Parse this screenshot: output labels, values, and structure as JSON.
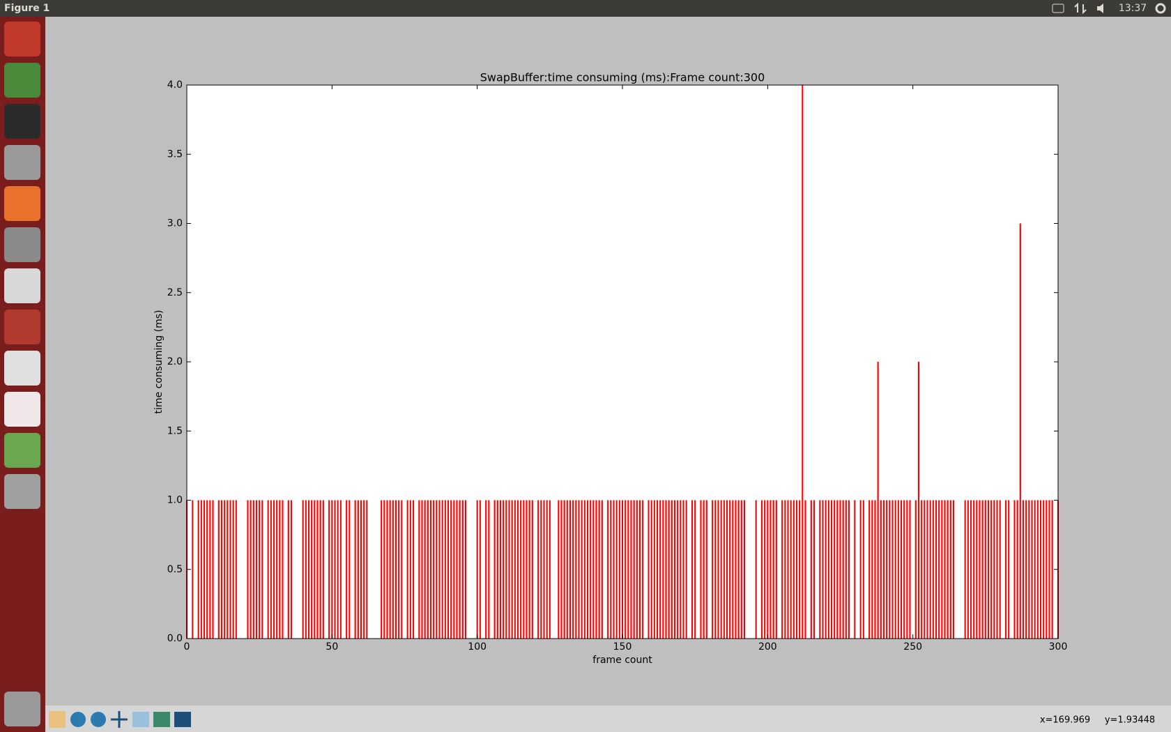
{
  "window": {
    "title": "Figure 1",
    "clock": "13:37",
    "status_x": "x=169.969",
    "status_y": "y=1.93448"
  },
  "chart_data": {
    "type": "bar",
    "title": "SwapBuffer:time consuming (ms):Frame count:300",
    "xlabel": "frame count",
    "ylabel": "time consuming (ms)",
    "color": "#ff0000",
    "xlim": [
      0,
      300
    ],
    "ylim": [
      0,
      4
    ],
    "xticks": [
      0,
      50,
      100,
      150,
      200,
      250,
      300
    ],
    "yticks": [
      {
        "value": 0,
        "label": "0.0"
      },
      {
        "value": 0.5,
        "label": "0.5"
      },
      {
        "value": 1,
        "label": "1.0"
      },
      {
        "value": 1.5,
        "label": "1.5"
      },
      {
        "value": 2,
        "label": "2.0"
      },
      {
        "value": 2.5,
        "label": "2.5"
      },
      {
        "value": 3,
        "label": "3.0"
      },
      {
        "value": 3.5,
        "label": "3.5"
      },
      {
        "value": 4,
        "label": "4.0"
      }
    ],
    "x": [
      0,
      1,
      2,
      3,
      4,
      5,
      6,
      7,
      8,
      9,
      10,
      11,
      12,
      13,
      14,
      15,
      16,
      17,
      18,
      19,
      20,
      21,
      22,
      23,
      24,
      25,
      26,
      27,
      28,
      29,
      30,
      31,
      32,
      33,
      34,
      35,
      36,
      37,
      38,
      39,
      40,
      41,
      42,
      43,
      44,
      45,
      46,
      47,
      48,
      49,
      50,
      51,
      52,
      53,
      54,
      55,
      56,
      57,
      58,
      59,
      60,
      61,
      62,
      63,
      64,
      65,
      66,
      67,
      68,
      69,
      70,
      71,
      72,
      73,
      74,
      75,
      76,
      77,
      78,
      79,
      80,
      81,
      82,
      83,
      84,
      85,
      86,
      87,
      88,
      89,
      90,
      91,
      92,
      93,
      94,
      95,
      96,
      97,
      98,
      99,
      100,
      101,
      102,
      103,
      104,
      105,
      106,
      107,
      108,
      109,
      110,
      111,
      112,
      113,
      114,
      115,
      116,
      117,
      118,
      119,
      120,
      121,
      122,
      123,
      124,
      125,
      126,
      127,
      128,
      129,
      130,
      131,
      132,
      133,
      134,
      135,
      136,
      137,
      138,
      139,
      140,
      141,
      142,
      143,
      144,
      145,
      146,
      147,
      148,
      149,
      150,
      151,
      152,
      153,
      154,
      155,
      156,
      157,
      158,
      159,
      160,
      161,
      162,
      163,
      164,
      165,
      166,
      167,
      168,
      169,
      170,
      171,
      172,
      173,
      174,
      175,
      176,
      177,
      178,
      179,
      180,
      181,
      182,
      183,
      184,
      185,
      186,
      187,
      188,
      189,
      190,
      191,
      192,
      193,
      194,
      195,
      196,
      197,
      198,
      199,
      200,
      201,
      202,
      203,
      204,
      205,
      206,
      207,
      208,
      209,
      210,
      211,
      212,
      213,
      214,
      215,
      216,
      217,
      218,
      219,
      220,
      221,
      222,
      223,
      224,
      225,
      226,
      227,
      228,
      229,
      230,
      231,
      232,
      233,
      234,
      235,
      236,
      237,
      238,
      239,
      240,
      241,
      242,
      243,
      244,
      245,
      246,
      247,
      248,
      249,
      250,
      251,
      252,
      253,
      254,
      255,
      256,
      257,
      258,
      259,
      260,
      261,
      262,
      263,
      264,
      265,
      266,
      267,
      268,
      269,
      270,
      271,
      272,
      273,
      274,
      275,
      276,
      277,
      278,
      279,
      280,
      281,
      282,
      283,
      284,
      285,
      286,
      287,
      288,
      289,
      290,
      291,
      292,
      293,
      294,
      295,
      296,
      297,
      298,
      299,
      300
    ],
    "values": [
      1,
      0,
      1,
      0,
      1,
      1,
      1,
      1,
      1,
      1,
      0,
      1,
      1,
      1,
      1,
      1,
      1,
      1,
      0,
      0,
      0,
      1,
      1,
      1,
      1,
      1,
      1,
      0,
      1,
      1,
      1,
      1,
      1,
      1,
      0,
      1,
      1,
      0,
      0,
      0,
      1,
      1,
      1,
      1,
      1,
      1,
      1,
      1,
      0,
      1,
      1,
      1,
      1,
      1,
      0,
      1,
      1,
      0,
      1,
      1,
      1,
      1,
      1,
      0,
      0,
      0,
      0,
      1,
      1,
      1,
      1,
      1,
      1,
      1,
      1,
      0,
      1,
      1,
      1,
      0,
      1,
      1,
      1,
      1,
      1,
      1,
      1,
      1,
      1,
      1,
      1,
      1,
      1,
      1,
      1,
      1,
      1,
      0,
      0,
      0,
      1,
      1,
      0,
      1,
      1,
      0,
      1,
      1,
      1,
      1,
      1,
      1,
      1,
      1,
      1,
      1,
      1,
      1,
      1,
      1,
      0,
      1,
      1,
      1,
      1,
      1,
      0,
      0,
      1,
      1,
      1,
      1,
      1,
      1,
      1,
      1,
      1,
      1,
      1,
      1,
      1,
      1,
      1,
      1,
      0,
      1,
      1,
      1,
      1,
      1,
      1,
      1,
      1,
      1,
      1,
      1,
      1,
      1,
      0,
      1,
      1,
      1,
      1,
      1,
      1,
      1,
      1,
      1,
      1,
      1,
      1,
      1,
      1,
      0,
      1,
      1,
      0,
      1,
      1,
      1,
      0,
      1,
      1,
      1,
      1,
      1,
      1,
      1,
      1,
      1,
      1,
      1,
      1,
      0,
      0,
      0,
      1,
      0,
      1,
      1,
      1,
      1,
      1,
      1,
      0,
      1,
      1,
      1,
      1,
      1,
      1,
      1,
      4,
      1,
      0,
      1,
      1,
      0,
      1,
      1,
      1,
      1,
      1,
      1,
      1,
      1,
      1,
      1,
      1,
      0,
      1,
      0,
      1,
      1,
      0,
      1,
      1,
      1,
      2,
      1,
      1,
      1,
      1,
      1,
      1,
      1,
      1,
      1,
      1,
      1,
      0,
      1,
      2,
      1,
      1,
      1,
      1,
      1,
      1,
      1,
      1,
      1,
      1,
      1,
      1,
      0,
      0,
      0,
      1,
      1,
      1,
      1,
      1,
      1,
      1,
      1,
      1,
      1,
      1,
      1,
      1,
      0,
      1,
      1,
      0,
      1,
      1,
      3,
      1,
      1,
      1,
      1,
      1,
      1,
      1,
      1,
      1,
      1,
      1,
      0,
      1
    ]
  }
}
